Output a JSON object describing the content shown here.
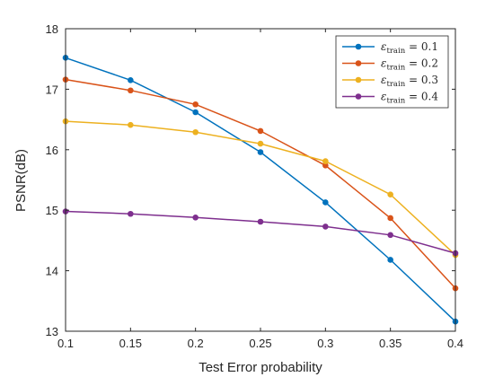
{
  "chart_data": {
    "type": "line",
    "xlabel": "Test Error probability",
    "ylabel": "PSNR(dB)",
    "x": [
      0.1,
      0.15,
      0.2,
      0.25,
      0.3,
      0.35,
      0.4
    ],
    "x_tick_labels": [
      "0.1",
      "0.15",
      "0.2",
      "0.25",
      "0.3",
      "0.35",
      "0.4"
    ],
    "xlim": [
      0.1,
      0.4
    ],
    "ylim": [
      13,
      18
    ],
    "y_ticks": [
      13,
      14,
      15,
      16,
      17,
      18
    ],
    "grid": false,
    "legend_position": "top-right",
    "series": [
      {
        "name": "ε_train = 0.1",
        "legend_sub": "train",
        "legend_val": "0.1",
        "color": "#0072BD",
        "values": [
          17.52,
          17.15,
          16.62,
          15.96,
          15.13,
          14.18,
          13.16
        ]
      },
      {
        "name": "ε_train = 0.2",
        "legend_sub": "train",
        "legend_val": "0.2",
        "color": "#D95319",
        "values": [
          17.16,
          16.98,
          16.75,
          16.31,
          15.74,
          14.87,
          13.71
        ]
      },
      {
        "name": "ε_train = 0.3",
        "legend_sub": "train",
        "legend_val": "0.3",
        "color": "#EDB120",
        "values": [
          16.47,
          16.41,
          16.29,
          16.1,
          15.81,
          15.26,
          14.26
        ]
      },
      {
        "name": "ε_train = 0.4",
        "legend_sub": "train",
        "legend_val": "0.4",
        "color": "#7E2F8E",
        "values": [
          14.98,
          14.94,
          14.88,
          14.81,
          14.73,
          14.59,
          14.29
        ]
      }
    ]
  }
}
